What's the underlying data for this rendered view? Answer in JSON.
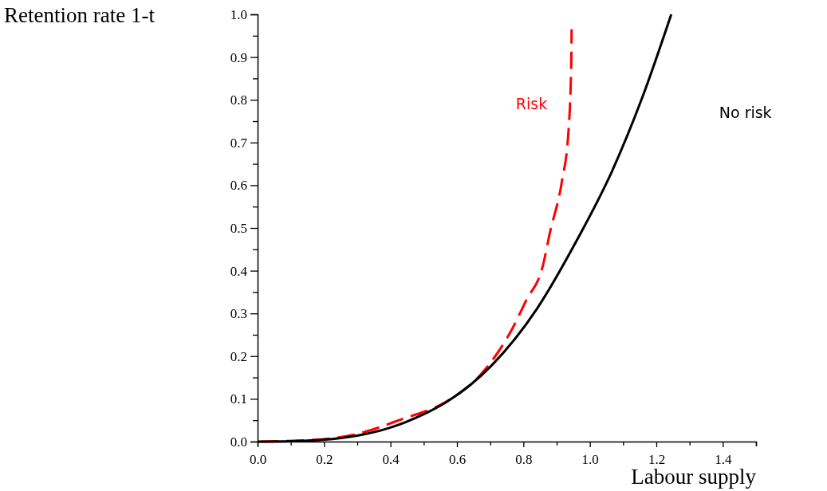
{
  "chart_data": {
    "type": "line",
    "xlabel": "Labour supply",
    "ylabel": "Retention rate 1-t",
    "xlim": [
      0,
      1.5
    ],
    "ylim": [
      0,
      1
    ],
    "xticks": [
      {
        "value": 0,
        "label": "0.0"
      },
      {
        "value": 0.1,
        "label": null
      },
      0.2,
      {
        "value": 0.3,
        "label": null
      },
      0.4,
      {
        "value": 0.5,
        "label": null
      },
      0.6,
      {
        "value": 0.7,
        "label": null
      },
      0.8,
      {
        "value": 0.9,
        "label": null
      },
      {
        "value": 1,
        "label": "1.0"
      },
      {
        "value": 1.1,
        "label": null
      },
      1.2,
      {
        "value": 1.3,
        "label": null
      },
      1.4,
      {
        "value": 1.5,
        "label": null
      }
    ],
    "yticks": [
      {
        "value": 0,
        "label": "0.0"
      },
      {
        "value": 0.05,
        "label": null
      },
      0.1,
      {
        "value": 0.15,
        "label": null
      },
      0.2,
      {
        "value": 0.25,
        "label": null
      },
      0.3,
      {
        "value": 0.35,
        "label": null
      },
      0.4,
      {
        "value": 0.45,
        "label": null
      },
      0.5,
      {
        "value": 0.55,
        "label": null
      },
      0.6,
      {
        "value": 0.65,
        "label": null
      },
      0.7,
      {
        "value": 0.75,
        "label": null
      },
      0.8,
      {
        "value": 0.85,
        "label": null
      },
      0.9,
      {
        "value": 0.95,
        "label": null
      },
      {
        "value": 1,
        "label": "1.0"
      }
    ],
    "grid": false,
    "marker": "none",
    "series": [
      {
        "name": "Risk",
        "color": "#ff0000",
        "line_style": "dashed",
        "x": [
          0.01,
          0.17,
          0.3,
          0.436,
          0.567,
          0.675,
          0.767,
          0.808,
          0.858,
          0.88,
          0.916,
          0.935,
          0.944,
          0.945
        ],
        "values": [
          0,
          0.004,
          0.018,
          0.053,
          0.093,
          0.16,
          0.265,
          0.33,
          0.41,
          0.49,
          0.61,
          0.72,
          0.886,
          0.965
        ]
      },
      {
        "name": "No risk",
        "color": "#000000",
        "line_style": "solid",
        "x": [
          0,
          0.1,
          0.196,
          0.3,
          0.4,
          0.5,
          0.567,
          0.704,
          0.84,
          0.96,
          1.065,
          1.16,
          1.245
        ],
        "values": [
          0,
          0.001,
          0.004,
          0.014,
          0.033,
          0.064,
          0.092,
          0.178,
          0.31,
          0.47,
          0.63,
          0.81,
          1.0
        ]
      }
    ]
  }
}
